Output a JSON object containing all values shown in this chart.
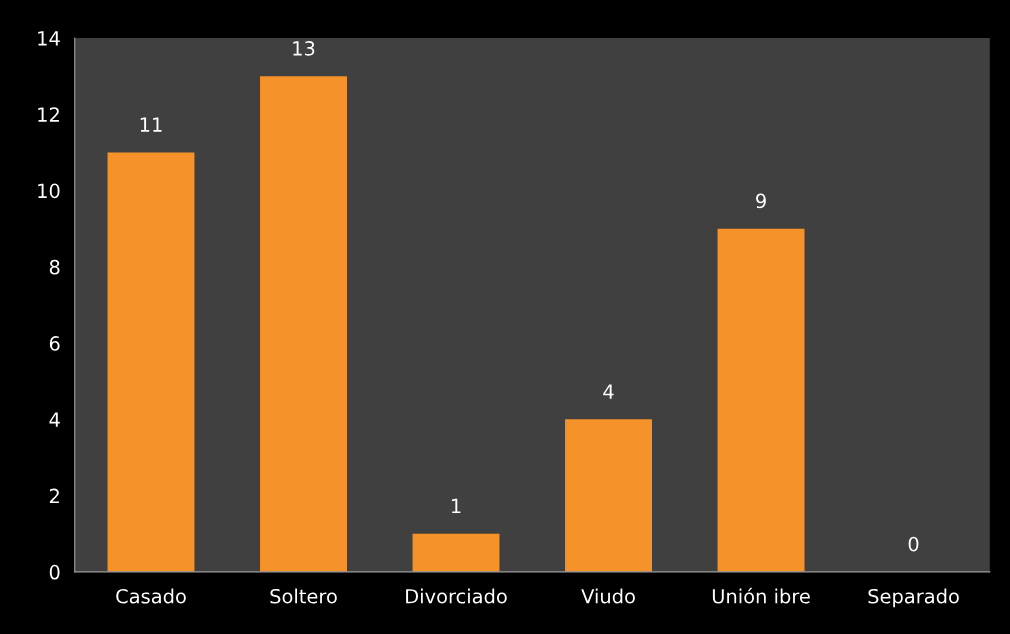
{
  "chart_data": {
    "type": "bar",
    "categories": [
      "Casado",
      "Soltero",
      "Divorciado",
      "Viudo",
      "Unión ibre",
      "Separado"
    ],
    "values": [
      11,
      13,
      1,
      4,
      9,
      0
    ],
    "color": "#f5922a",
    "ylim": [
      0,
      14
    ],
    "yticks": [
      0,
      2,
      4,
      6,
      8,
      10,
      12,
      14
    ],
    "grid": false,
    "data_labels": true
  }
}
